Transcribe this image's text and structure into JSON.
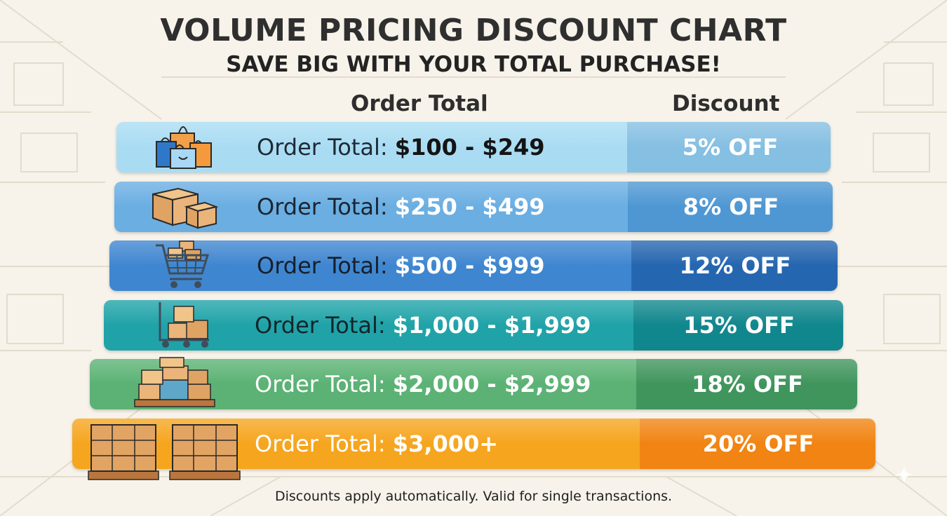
{
  "title": "VOLUME PRICING DISCOUNT CHART",
  "subtitle": "SAVE BIG WITH YOUR TOTAL PURCHASE!",
  "columns": {
    "order_total": "Order Total",
    "discount": "Discount"
  },
  "tiers": [
    {
      "prefix": "Order Total: ",
      "range": "$100 - $249",
      "discount": "5% OFF",
      "icon": "shopping-bags-icon",
      "color": "#a9dcf3",
      "band_color": "#85bfe2"
    },
    {
      "prefix": "Order Total: ",
      "range": "$250 - $499",
      "discount": "8% OFF",
      "icon": "cardboard-boxes-icon",
      "color": "#6aaee2",
      "band_color": "#4e97d3"
    },
    {
      "prefix": "Order Total: ",
      "range": "$500 - $999",
      "discount": "12% OFF",
      "icon": "shopping-cart-icon",
      "color": "#3f86d0",
      "band_color": "#2566b0"
    },
    {
      "prefix": "Order Total: ",
      "range": "$1,000 - $1,999",
      "discount": "15% OFF",
      "icon": "hand-truck-icon",
      "color": "#1fa3a8",
      "band_color": "#10878d"
    },
    {
      "prefix": "Order Total: ",
      "range": "$2,000 - $2,999",
      "discount": "18% OFF",
      "icon": "pallet-icon",
      "color": "#5bb274",
      "band_color": "#3f955c"
    },
    {
      "prefix": "Order Total: ",
      "range": "$3,000+",
      "discount": "20% OFF",
      "icon": "pallets-icon",
      "color": "#f6a51e",
      "band_color": "#f18412"
    }
  ],
  "footnote": "Discounts apply automatically. Valid for single transactions."
}
